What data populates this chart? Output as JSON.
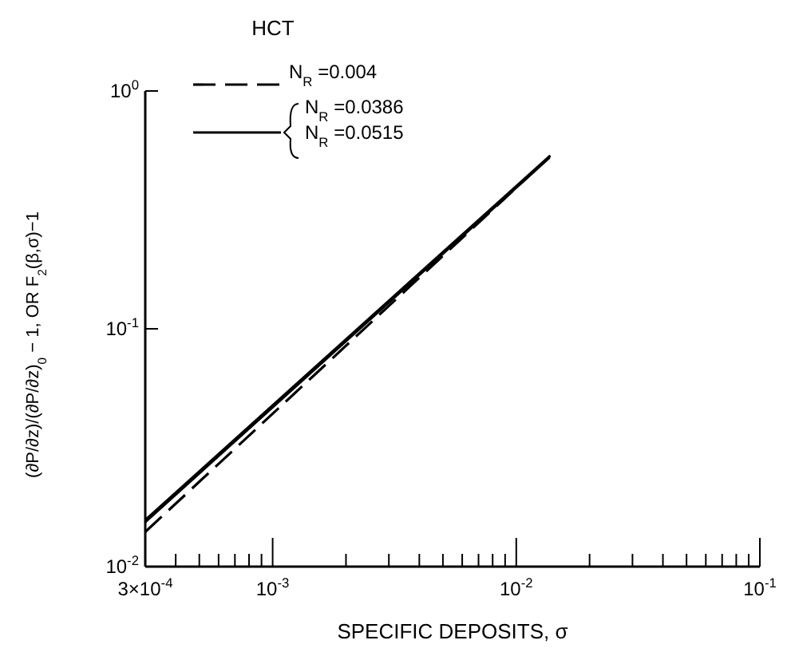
{
  "chart_data": {
    "type": "line",
    "title": "HCT",
    "xlabel": "SPECIFIC DEPOSITS, σ",
    "ylabel": "(∂P/∂z)/(∂P/∂z)$_{0}$ − 1, OR F$_{2}$(β,σ)−1",
    "log": "xy",
    "xlim": [
      0.0003,
      0.1
    ],
    "ylim": [
      0.01,
      1
    ],
    "xticks": [
      {
        "value": 0.0003,
        "label": "3×10$^{-4}$"
      },
      {
        "value": 0.0004,
        "label": null
      },
      {
        "value": 0.0005,
        "label": null
      },
      {
        "value": 0.0006,
        "label": null
      },
      {
        "value": 0.0007,
        "label": null
      },
      {
        "value": 0.0008,
        "label": null
      },
      {
        "value": 0.0009,
        "label": null
      },
      {
        "value": 0.001,
        "label": "10$^{-3}$"
      },
      {
        "value": 0.002,
        "label": null
      },
      {
        "value": 0.003,
        "label": null
      },
      {
        "value": 0.004,
        "label": null
      },
      {
        "value": 0.005,
        "label": null
      },
      {
        "value": 0.006,
        "label": null
      },
      {
        "value": 0.007,
        "label": null
      },
      {
        "value": 0.008,
        "label": null
      },
      {
        "value": 0.009,
        "label": null
      },
      {
        "value": 0.01,
        "label": "10$^{-2}$"
      },
      {
        "value": 0.02,
        "label": null
      },
      {
        "value": 0.03,
        "label": null
      },
      {
        "value": 0.04,
        "label": null
      },
      {
        "value": 0.05,
        "label": null
      },
      {
        "value": 0.06,
        "label": null
      },
      {
        "value": 0.07,
        "label": null
      },
      {
        "value": 0.08,
        "label": null
      },
      {
        "value": 0.09,
        "label": null
      },
      {
        "value": 0.1,
        "label": "10$^{-1}$"
      }
    ],
    "yticks": [
      {
        "value": 0.01,
        "label": "10$^{-2}$"
      },
      {
        "value": 0.1,
        "label": "10$^{-1}$"
      },
      {
        "value": 1,
        "label": "10$^{0}$"
      }
    ],
    "legend": "top left",
    "grid": false,
    "series": [
      {
        "name": "N$_{R}$ =0.004",
        "color": "#000000",
        "line_style": "dashed",
        "x": [
          0.0003,
          0.0132
        ],
        "values": [
          0.014,
          0.51
        ]
      },
      {
        "name": "N$_{R}$ =0.0386",
        "color": "#000000",
        "line_style": "solid",
        "x": [
          0.0003,
          0.0137
        ],
        "values": [
          0.0154,
          0.525
        ]
      },
      {
        "name": "N$_{R}$ =0.0515",
        "color": "#000000",
        "line_style": "solid",
        "x": [
          0.0003,
          0.0138
        ],
        "values": [
          0.0157,
          0.535
        ]
      }
    ]
  }
}
